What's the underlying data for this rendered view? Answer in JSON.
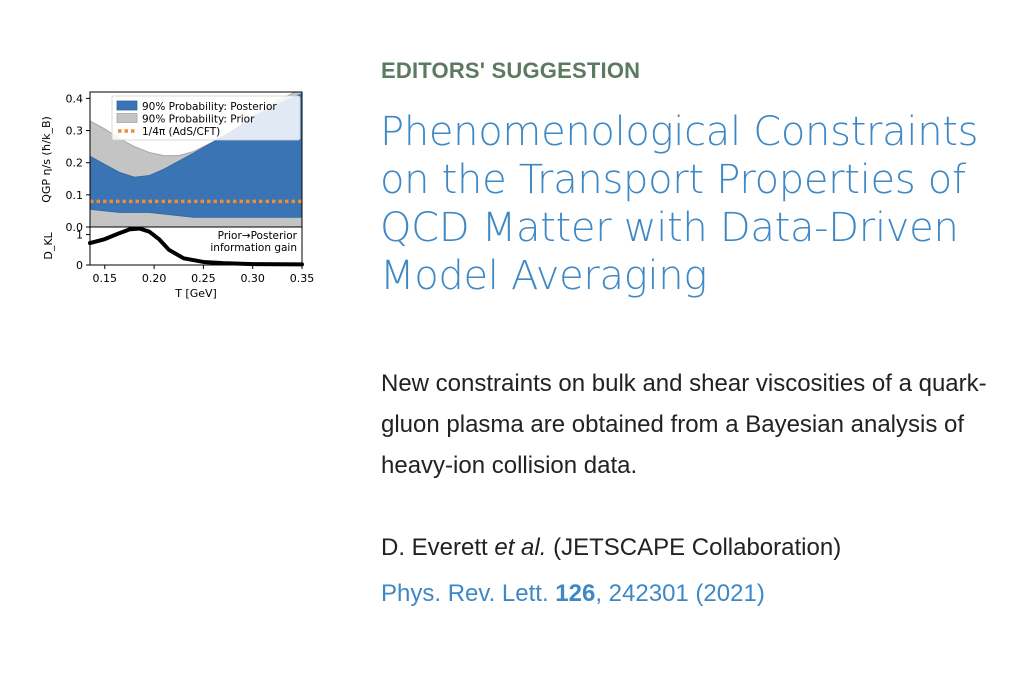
{
  "kicker": "EDITORS' SUGGESTION",
  "title": "Phenomenological Constraints on the Transport Properties of QCD Matter with Data-Driven Model Averaging",
  "summary": "New constraints on bulk and shear viscosities of a quark-gluon plasma are obtained from a Bayesian analysis of heavy-ion collision data.",
  "authors": {
    "main": "D. Everett",
    "etal": "et al.",
    "collab": "(JETSCAPE Collaboration)"
  },
  "citation": {
    "journal": "Phys. Rev. Lett.",
    "volume": "126",
    "rest": ", 242301 (2021)"
  },
  "chart_data": {
    "type": "area",
    "xlabel": "T [GeV]",
    "xlim": [
      0.135,
      0.35
    ],
    "x_ticks": [
      "0.15",
      "0.20",
      "0.25",
      "0.30",
      "0.35"
    ],
    "top_panel": {
      "ylabel": "QGP η/s (ħ/k_B)",
      "ylim": [
        0,
        0.42
      ],
      "y_ticks": [
        "0.0",
        "0.1",
        "0.2",
        "0.3",
        "0.4"
      ],
      "legend": [
        "90% Probability: Posterior",
        "90% Probability: Prior",
        "1/4π (AdS/CFT)"
      ],
      "legend_position": "top-right",
      "x": [
        0.135,
        0.15,
        0.165,
        0.18,
        0.195,
        0.21,
        0.225,
        0.24,
        0.26,
        0.28,
        0.3,
        0.32,
        0.35
      ],
      "prior_upper": [
        0.33,
        0.305,
        0.275,
        0.25,
        0.232,
        0.222,
        0.222,
        0.235,
        0.265,
        0.3,
        0.345,
        0.385,
        0.43
      ],
      "prior_lower": [
        0.0,
        0.0,
        0.0,
        0.0,
        0.0,
        0.0,
        0.0,
        0.0,
        0.0,
        0.0,
        0.0,
        0.0,
        0.0
      ],
      "posterior_upper": [
        0.22,
        0.195,
        0.17,
        0.155,
        0.16,
        0.18,
        0.205,
        0.23,
        0.265,
        0.3,
        0.34,
        0.375,
        0.415
      ],
      "posterior_lower": [
        0.055,
        0.05,
        0.045,
        0.045,
        0.045,
        0.04,
        0.035,
        0.03,
        0.03,
        0.03,
        0.03,
        0.03,
        0.03
      ],
      "kss_value": 0.0796
    },
    "bottom_panel": {
      "ylabel": "D_KL",
      "ylim": [
        0,
        1.25
      ],
      "y_ticks": [
        "0",
        "1"
      ],
      "annotation": [
        "Prior→Posterior",
        "information gain"
      ],
      "x": [
        0.135,
        0.15,
        0.165,
        0.175,
        0.185,
        0.195,
        0.205,
        0.215,
        0.23,
        0.25,
        0.27,
        0.3,
        0.35
      ],
      "y": [
        0.72,
        0.85,
        1.05,
        1.17,
        1.2,
        1.1,
        0.85,
        0.5,
        0.22,
        0.1,
        0.06,
        0.03,
        0.02
      ]
    }
  }
}
